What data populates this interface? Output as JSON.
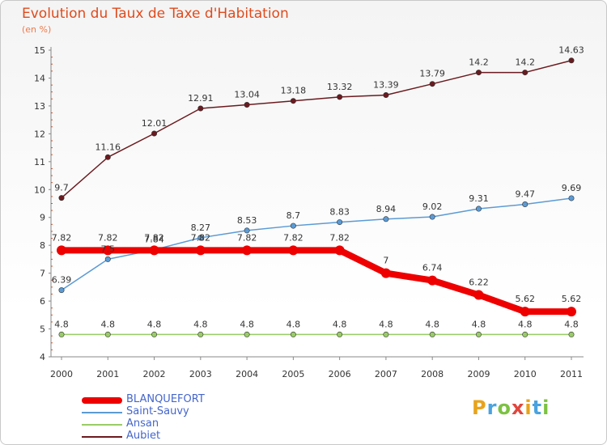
{
  "title": "Evolution du Taux de Taxe d'Habitation",
  "subtitle": "(en %)",
  "logo_text": "Proxiti",
  "chart_data": {
    "type": "line",
    "title": "Evolution du Taux de Taxe d'Habitation",
    "ylabel": "(en %)",
    "xlabel": "",
    "ylim": [
      4,
      15
    ],
    "yticks": [
      4,
      5,
      6,
      7,
      8,
      9,
      10,
      11,
      12,
      13,
      14,
      15
    ],
    "grid": false,
    "legend_position": "bottom",
    "categories": [
      "2000",
      "2001",
      "2002",
      "2003",
      "2004",
      "2005",
      "2006",
      "2007",
      "2008",
      "2009",
      "2010",
      "2011"
    ],
    "series": [
      {
        "name": "BLANQUEFORT",
        "color": "#ee0000",
        "values": [
          7.82,
          7.82,
          7.82,
          7.82,
          7.82,
          7.82,
          7.82,
          7,
          6.74,
          6.22,
          5.62,
          5.62
        ],
        "labels": [
          "7.82",
          "7.82",
          "7.82",
          "7.82",
          "7.82",
          "7.82",
          "7.82",
          "7",
          "6.74",
          "6.22",
          "5.62",
          "5.62"
        ]
      },
      {
        "name": "Saint-Sauvy",
        "color": "#5b9bd5",
        "values": [
          6.39,
          7.5,
          7.84,
          8.27,
          8.53,
          8.7,
          8.83,
          8.94,
          9.02,
          9.31,
          9.47,
          9.69
        ],
        "labels": [
          "6.39",
          "7.5",
          "7.84",
          "8.27",
          "8.53",
          "8.7",
          "8.83",
          "8.94",
          "9.02",
          "9.31",
          "9.47",
          "9.69"
        ]
      },
      {
        "name": "Ansan",
        "color": "#99cc66",
        "values": [
          4.8,
          4.8,
          4.8,
          4.8,
          4.8,
          4.8,
          4.8,
          4.8,
          4.8,
          4.8,
          4.8,
          4.8
        ],
        "labels": [
          "4.8",
          "4.8",
          "4.8",
          "4.8",
          "4.8",
          "4.8",
          "4.8",
          "4.8",
          "4.8",
          "4.8",
          "4.8",
          "4.8"
        ]
      },
      {
        "name": "Aubiet",
        "color": "#6b1a1f",
        "values": [
          9.7,
          11.16,
          12.01,
          12.91,
          13.04,
          13.18,
          13.32,
          13.39,
          13.79,
          14.2,
          14.2,
          14.63
        ],
        "labels": [
          "9.7",
          "11.16",
          "12.01",
          "12.91",
          "13.04",
          "13.18",
          "13.32",
          "13.39",
          "13.79",
          "14.2",
          "14.2",
          "14.63"
        ]
      }
    ]
  }
}
